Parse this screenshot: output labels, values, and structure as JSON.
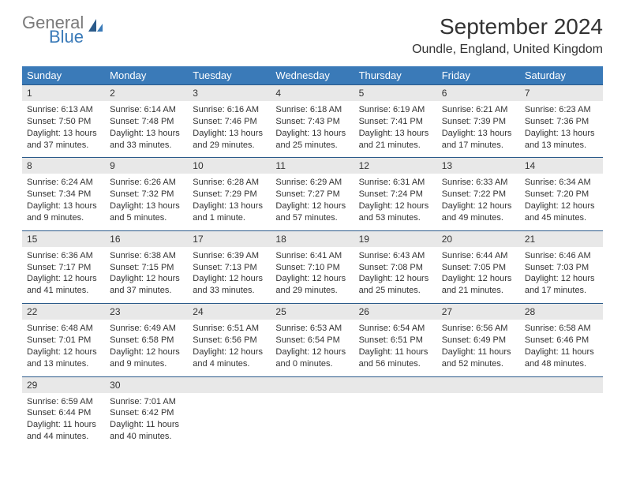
{
  "logo": {
    "general": "General",
    "blue": "Blue"
  },
  "title": "September 2024",
  "location": "Oundle, England, United Kingdom",
  "colors": {
    "header_bg": "#3a7ab8",
    "header_text": "#ffffff",
    "daynum_bg": "#e8e8e8",
    "border": "#2b5a8a",
    "text": "#333333",
    "logo_gray": "#7a7a7a",
    "logo_blue": "#3a7ab8",
    "background": "#ffffff"
  },
  "day_headers": [
    "Sunday",
    "Monday",
    "Tuesday",
    "Wednesday",
    "Thursday",
    "Friday",
    "Saturday"
  ],
  "weeks": [
    {
      "nums": [
        "1",
        "2",
        "3",
        "4",
        "5",
        "6",
        "7"
      ],
      "cells": [
        {
          "sunrise": "Sunrise: 6:13 AM",
          "sunset": "Sunset: 7:50 PM",
          "daylight1": "Daylight: 13 hours",
          "daylight2": "and 37 minutes."
        },
        {
          "sunrise": "Sunrise: 6:14 AM",
          "sunset": "Sunset: 7:48 PM",
          "daylight1": "Daylight: 13 hours",
          "daylight2": "and 33 minutes."
        },
        {
          "sunrise": "Sunrise: 6:16 AM",
          "sunset": "Sunset: 7:46 PM",
          "daylight1": "Daylight: 13 hours",
          "daylight2": "and 29 minutes."
        },
        {
          "sunrise": "Sunrise: 6:18 AM",
          "sunset": "Sunset: 7:43 PM",
          "daylight1": "Daylight: 13 hours",
          "daylight2": "and 25 minutes."
        },
        {
          "sunrise": "Sunrise: 6:19 AM",
          "sunset": "Sunset: 7:41 PM",
          "daylight1": "Daylight: 13 hours",
          "daylight2": "and 21 minutes."
        },
        {
          "sunrise": "Sunrise: 6:21 AM",
          "sunset": "Sunset: 7:39 PM",
          "daylight1": "Daylight: 13 hours",
          "daylight2": "and 17 minutes."
        },
        {
          "sunrise": "Sunrise: 6:23 AM",
          "sunset": "Sunset: 7:36 PM",
          "daylight1": "Daylight: 13 hours",
          "daylight2": "and 13 minutes."
        }
      ]
    },
    {
      "nums": [
        "8",
        "9",
        "10",
        "11",
        "12",
        "13",
        "14"
      ],
      "cells": [
        {
          "sunrise": "Sunrise: 6:24 AM",
          "sunset": "Sunset: 7:34 PM",
          "daylight1": "Daylight: 13 hours",
          "daylight2": "and 9 minutes."
        },
        {
          "sunrise": "Sunrise: 6:26 AM",
          "sunset": "Sunset: 7:32 PM",
          "daylight1": "Daylight: 13 hours",
          "daylight2": "and 5 minutes."
        },
        {
          "sunrise": "Sunrise: 6:28 AM",
          "sunset": "Sunset: 7:29 PM",
          "daylight1": "Daylight: 13 hours",
          "daylight2": "and 1 minute."
        },
        {
          "sunrise": "Sunrise: 6:29 AM",
          "sunset": "Sunset: 7:27 PM",
          "daylight1": "Daylight: 12 hours",
          "daylight2": "and 57 minutes."
        },
        {
          "sunrise": "Sunrise: 6:31 AM",
          "sunset": "Sunset: 7:24 PM",
          "daylight1": "Daylight: 12 hours",
          "daylight2": "and 53 minutes."
        },
        {
          "sunrise": "Sunrise: 6:33 AM",
          "sunset": "Sunset: 7:22 PM",
          "daylight1": "Daylight: 12 hours",
          "daylight2": "and 49 minutes."
        },
        {
          "sunrise": "Sunrise: 6:34 AM",
          "sunset": "Sunset: 7:20 PM",
          "daylight1": "Daylight: 12 hours",
          "daylight2": "and 45 minutes."
        }
      ]
    },
    {
      "nums": [
        "15",
        "16",
        "17",
        "18",
        "19",
        "20",
        "21"
      ],
      "cells": [
        {
          "sunrise": "Sunrise: 6:36 AM",
          "sunset": "Sunset: 7:17 PM",
          "daylight1": "Daylight: 12 hours",
          "daylight2": "and 41 minutes."
        },
        {
          "sunrise": "Sunrise: 6:38 AM",
          "sunset": "Sunset: 7:15 PM",
          "daylight1": "Daylight: 12 hours",
          "daylight2": "and 37 minutes."
        },
        {
          "sunrise": "Sunrise: 6:39 AM",
          "sunset": "Sunset: 7:13 PM",
          "daylight1": "Daylight: 12 hours",
          "daylight2": "and 33 minutes."
        },
        {
          "sunrise": "Sunrise: 6:41 AM",
          "sunset": "Sunset: 7:10 PM",
          "daylight1": "Daylight: 12 hours",
          "daylight2": "and 29 minutes."
        },
        {
          "sunrise": "Sunrise: 6:43 AM",
          "sunset": "Sunset: 7:08 PM",
          "daylight1": "Daylight: 12 hours",
          "daylight2": "and 25 minutes."
        },
        {
          "sunrise": "Sunrise: 6:44 AM",
          "sunset": "Sunset: 7:05 PM",
          "daylight1": "Daylight: 12 hours",
          "daylight2": "and 21 minutes."
        },
        {
          "sunrise": "Sunrise: 6:46 AM",
          "sunset": "Sunset: 7:03 PM",
          "daylight1": "Daylight: 12 hours",
          "daylight2": "and 17 minutes."
        }
      ]
    },
    {
      "nums": [
        "22",
        "23",
        "24",
        "25",
        "26",
        "27",
        "28"
      ],
      "cells": [
        {
          "sunrise": "Sunrise: 6:48 AM",
          "sunset": "Sunset: 7:01 PM",
          "daylight1": "Daylight: 12 hours",
          "daylight2": "and 13 minutes."
        },
        {
          "sunrise": "Sunrise: 6:49 AM",
          "sunset": "Sunset: 6:58 PM",
          "daylight1": "Daylight: 12 hours",
          "daylight2": "and 9 minutes."
        },
        {
          "sunrise": "Sunrise: 6:51 AM",
          "sunset": "Sunset: 6:56 PM",
          "daylight1": "Daylight: 12 hours",
          "daylight2": "and 4 minutes."
        },
        {
          "sunrise": "Sunrise: 6:53 AM",
          "sunset": "Sunset: 6:54 PM",
          "daylight1": "Daylight: 12 hours",
          "daylight2": "and 0 minutes."
        },
        {
          "sunrise": "Sunrise: 6:54 AM",
          "sunset": "Sunset: 6:51 PM",
          "daylight1": "Daylight: 11 hours",
          "daylight2": "and 56 minutes."
        },
        {
          "sunrise": "Sunrise: 6:56 AM",
          "sunset": "Sunset: 6:49 PM",
          "daylight1": "Daylight: 11 hours",
          "daylight2": "and 52 minutes."
        },
        {
          "sunrise": "Sunrise: 6:58 AM",
          "sunset": "Sunset: 6:46 PM",
          "daylight1": "Daylight: 11 hours",
          "daylight2": "and 48 minutes."
        }
      ]
    },
    {
      "nums": [
        "29",
        "30",
        "",
        "",
        "",
        "",
        ""
      ],
      "cells": [
        {
          "sunrise": "Sunrise: 6:59 AM",
          "sunset": "Sunset: 6:44 PM",
          "daylight1": "Daylight: 11 hours",
          "daylight2": "and 44 minutes."
        },
        {
          "sunrise": "Sunrise: 7:01 AM",
          "sunset": "Sunset: 6:42 PM",
          "daylight1": "Daylight: 11 hours",
          "daylight2": "and 40 minutes."
        },
        {
          "sunrise": "",
          "sunset": "",
          "daylight1": "",
          "daylight2": ""
        },
        {
          "sunrise": "",
          "sunset": "",
          "daylight1": "",
          "daylight2": ""
        },
        {
          "sunrise": "",
          "sunset": "",
          "daylight1": "",
          "daylight2": ""
        },
        {
          "sunrise": "",
          "sunset": "",
          "daylight1": "",
          "daylight2": ""
        },
        {
          "sunrise": "",
          "sunset": "",
          "daylight1": "",
          "daylight2": ""
        }
      ]
    }
  ]
}
